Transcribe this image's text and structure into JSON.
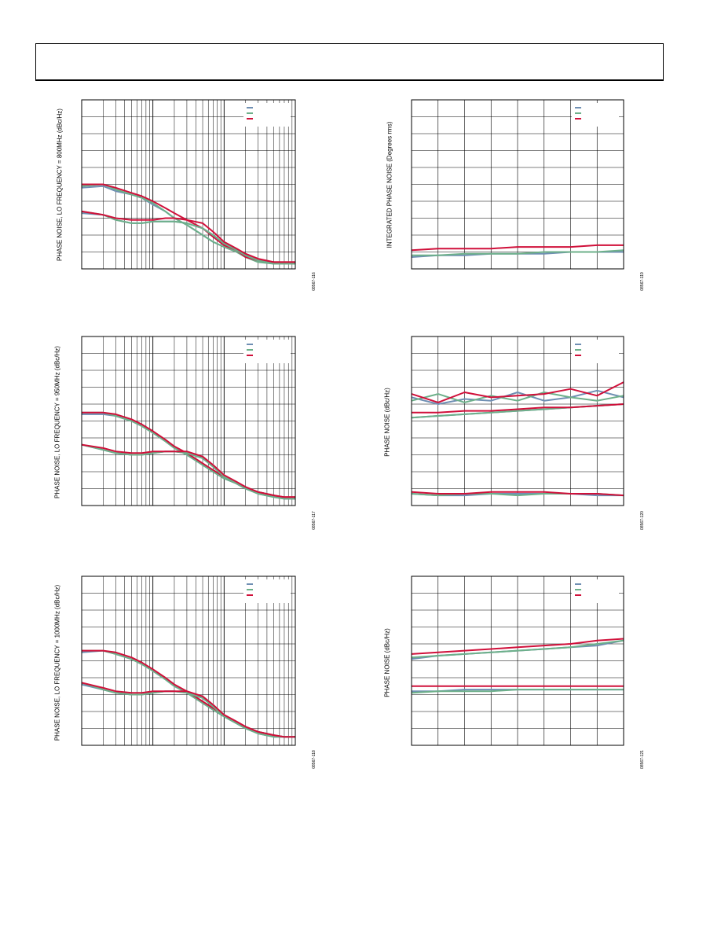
{
  "page": {
    "header_box": ""
  },
  "colors": {
    "blue": "#6f8fb3",
    "green": "#6db08a",
    "red": "#d0103a",
    "grid": "#000000"
  },
  "figures": [
    {
      "id": "fig-16",
      "ylabel": "PHASE NOISE, LO FREQUENCY = 800MHz (dBc/Hz)",
      "figure_id": "08567-116"
    },
    {
      "id": "fig-17",
      "ylabel": "PHASE NOISE, LO FREQUENCY = 950MHz (dBc/Hz)",
      "figure_id": "08567-117"
    },
    {
      "id": "fig-18",
      "ylabel": "PHASE NOISE, LO FREQUENCY = 1000MHz (dBc/Hz)",
      "figure_id": "08567-118"
    },
    {
      "id": "fig-19",
      "ylabel": "INTEGRATED PHASE NOISE (Degrees rms)",
      "figure_id": "08567-119"
    },
    {
      "id": "fig-20",
      "ylabel": "PHASE NOISE (dBc/Hz)",
      "figure_id": "08567-120"
    },
    {
      "id": "fig-21",
      "ylabel": "PHASE NOISE (dBc/Hz)",
      "figure_id": "08567-121"
    }
  ],
  "chart_data": [
    {
      "type": "line",
      "scale_x": "log",
      "grid": true,
      "legend": "top-right",
      "x": [
        1,
        2,
        3,
        5,
        7,
        10,
        15,
        20,
        30,
        50,
        70,
        100,
        150,
        200,
        300,
        500,
        700,
        1000
      ],
      "series": [
        {
          "color": "blue",
          "values": [
            0.52,
            0.51,
            0.54,
            0.56,
            0.58,
            0.62,
            0.66,
            0.7,
            0.74,
            0.8,
            0.84,
            0.87,
            0.9,
            0.93,
            0.95,
            0.97,
            0.97,
            0.97
          ]
        },
        {
          "color": "green",
          "values": [
            0.51,
            0.5,
            0.53,
            0.56,
            0.58,
            0.61,
            0.66,
            0.7,
            0.74,
            0.8,
            0.84,
            0.87,
            0.9,
            0.93,
            0.96,
            0.97,
            0.97,
            0.97
          ]
        },
        {
          "color": "red",
          "values": [
            0.5,
            0.5,
            0.52,
            0.55,
            0.57,
            0.6,
            0.64,
            0.67,
            0.71,
            0.76,
            0.81,
            0.86,
            0.89,
            0.93,
            0.95,
            0.96,
            0.96,
            0.96
          ]
        },
        {
          "color": "blue",
          "values": [
            0.67,
            0.68,
            0.71,
            0.73,
            0.73,
            0.72,
            0.72,
            0.72,
            0.73,
            0.76,
            0.8,
            0.85,
            0.89,
            0.92,
            0.95,
            0.97,
            0.97,
            0.97
          ]
        },
        {
          "color": "green",
          "values": [
            0.66,
            0.68,
            0.71,
            0.73,
            0.73,
            0.72,
            0.72,
            0.72,
            0.73,
            0.76,
            0.8,
            0.85,
            0.89,
            0.92,
            0.95,
            0.97,
            0.97,
            0.97
          ]
        },
        {
          "color": "red",
          "values": [
            0.66,
            0.68,
            0.7,
            0.71,
            0.71,
            0.71,
            0.7,
            0.7,
            0.71,
            0.73,
            0.78,
            0.84,
            0.88,
            0.91,
            0.94,
            0.96,
            0.96,
            0.96
          ]
        }
      ]
    },
    {
      "type": "line",
      "scale_x": "log",
      "grid": true,
      "legend": "top-right",
      "x": [
        1,
        2,
        3,
        5,
        7,
        10,
        15,
        20,
        30,
        50,
        70,
        100,
        150,
        200,
        300,
        500,
        700,
        1000
      ],
      "series": [
        {
          "color": "blue",
          "values": [
            0.46,
            0.46,
            0.47,
            0.5,
            0.53,
            0.57,
            0.62,
            0.66,
            0.7,
            0.76,
            0.8,
            0.84,
            0.87,
            0.9,
            0.92,
            0.94,
            0.96,
            0.96
          ]
        },
        {
          "color": "green",
          "values": [
            0.45,
            0.45,
            0.47,
            0.5,
            0.53,
            0.57,
            0.62,
            0.66,
            0.7,
            0.76,
            0.8,
            0.84,
            0.87,
            0.9,
            0.92,
            0.94,
            0.96,
            0.96
          ]
        },
        {
          "color": "red",
          "values": [
            0.45,
            0.45,
            0.46,
            0.49,
            0.52,
            0.56,
            0.61,
            0.65,
            0.69,
            0.75,
            0.79,
            0.83,
            0.87,
            0.9,
            0.92,
            0.94,
            0.95,
            0.95
          ]
        },
        {
          "color": "blue",
          "values": [
            0.64,
            0.67,
            0.69,
            0.7,
            0.7,
            0.69,
            0.68,
            0.68,
            0.69,
            0.72,
            0.77,
            0.83,
            0.87,
            0.9,
            0.93,
            0.95,
            0.96,
            0.96
          ]
        },
        {
          "color": "green",
          "values": [
            0.64,
            0.67,
            0.69,
            0.7,
            0.7,
            0.69,
            0.68,
            0.68,
            0.69,
            0.72,
            0.77,
            0.83,
            0.87,
            0.9,
            0.93,
            0.95,
            0.96,
            0.96
          ]
        },
        {
          "color": "red",
          "values": [
            0.64,
            0.66,
            0.68,
            0.69,
            0.69,
            0.68,
            0.68,
            0.68,
            0.68,
            0.71,
            0.76,
            0.82,
            0.86,
            0.89,
            0.92,
            0.94,
            0.95,
            0.95
          ]
        }
      ]
    },
    {
      "type": "line",
      "scale_x": "log",
      "grid": true,
      "legend": "top-right",
      "x": [
        1,
        2,
        3,
        5,
        7,
        10,
        15,
        20,
        30,
        50,
        70,
        100,
        150,
        200,
        300,
        500,
        700,
        1000
      ],
      "series": [
        {
          "color": "blue",
          "values": [
            0.45,
            0.44,
            0.46,
            0.49,
            0.52,
            0.56,
            0.61,
            0.65,
            0.69,
            0.75,
            0.79,
            0.83,
            0.87,
            0.9,
            0.92,
            0.94,
            0.95,
            0.95
          ]
        },
        {
          "color": "green",
          "values": [
            0.44,
            0.44,
            0.46,
            0.49,
            0.52,
            0.56,
            0.61,
            0.65,
            0.69,
            0.75,
            0.79,
            0.83,
            0.87,
            0.9,
            0.92,
            0.94,
            0.95,
            0.95
          ]
        },
        {
          "color": "red",
          "values": [
            0.44,
            0.44,
            0.45,
            0.48,
            0.51,
            0.55,
            0.6,
            0.64,
            0.68,
            0.74,
            0.78,
            0.82,
            0.86,
            0.89,
            0.92,
            0.94,
            0.95,
            0.95
          ]
        },
        {
          "color": "blue",
          "values": [
            0.64,
            0.67,
            0.69,
            0.7,
            0.7,
            0.69,
            0.68,
            0.68,
            0.69,
            0.72,
            0.77,
            0.83,
            0.87,
            0.9,
            0.93,
            0.95,
            0.95,
            0.95
          ]
        },
        {
          "color": "green",
          "values": [
            0.63,
            0.67,
            0.69,
            0.7,
            0.7,
            0.69,
            0.68,
            0.68,
            0.69,
            0.72,
            0.77,
            0.83,
            0.87,
            0.9,
            0.93,
            0.95,
            0.95,
            0.95
          ]
        },
        {
          "color": "red",
          "values": [
            0.63,
            0.66,
            0.68,
            0.69,
            0.69,
            0.68,
            0.68,
            0.68,
            0.68,
            0.71,
            0.76,
            0.82,
            0.86,
            0.89,
            0.92,
            0.94,
            0.95,
            0.95
          ]
        }
      ]
    },
    {
      "type": "line",
      "grid": true,
      "legend": "top-right",
      "x": [
        0,
        1,
        2,
        3,
        4,
        5,
        6,
        7,
        8
      ],
      "series": [
        {
          "color": "blue",
          "values": [
            0.93,
            0.92,
            0.92,
            0.91,
            0.91,
            0.91,
            0.9,
            0.9,
            0.9
          ]
        },
        {
          "color": "green",
          "values": [
            0.92,
            0.92,
            0.91,
            0.91,
            0.91,
            0.9,
            0.9,
            0.9,
            0.89
          ]
        },
        {
          "color": "red",
          "values": [
            0.89,
            0.88,
            0.88,
            0.88,
            0.87,
            0.87,
            0.87,
            0.86,
            0.86
          ]
        }
      ]
    },
    {
      "type": "line",
      "grid": true,
      "legend": "top-right",
      "x": [
        0,
        1,
        2,
        3,
        4,
        5,
        6,
        7,
        8
      ],
      "series": [
        {
          "color": "blue",
          "values": [
            0.36,
            0.4,
            0.37,
            0.38,
            0.33,
            0.38,
            0.36,
            0.32,
            0.36
          ]
        },
        {
          "color": "green",
          "values": [
            0.38,
            0.34,
            0.39,
            0.35,
            0.38,
            0.33,
            0.36,
            0.38,
            0.35
          ]
        },
        {
          "color": "red",
          "values": [
            0.34,
            0.39,
            0.33,
            0.36,
            0.35,
            0.34,
            0.31,
            0.35,
            0.27
          ]
        },
        {
          "color": "blue",
          "values": [
            0.48,
            0.47,
            0.46,
            0.45,
            0.44,
            0.43,
            0.42,
            0.41,
            0.4
          ]
        },
        {
          "color": "green",
          "values": [
            0.48,
            0.47,
            0.46,
            0.45,
            0.44,
            0.43,
            0.42,
            0.41,
            0.4
          ]
        },
        {
          "color": "red",
          "values": [
            0.45,
            0.45,
            0.44,
            0.44,
            0.43,
            0.42,
            0.42,
            0.41,
            0.4
          ]
        },
        {
          "color": "blue",
          "values": [
            0.93,
            0.94,
            0.94,
            0.93,
            0.93,
            0.93,
            0.93,
            0.94,
            0.94
          ]
        },
        {
          "color": "green",
          "values": [
            0.93,
            0.94,
            0.93,
            0.93,
            0.94,
            0.93,
            0.93,
            0.93,
            0.94
          ]
        },
        {
          "color": "red",
          "values": [
            0.92,
            0.93,
            0.93,
            0.92,
            0.92,
            0.92,
            0.93,
            0.93,
            0.94
          ]
        }
      ]
    },
    {
      "type": "line",
      "grid": true,
      "legend": "top-right",
      "x": [
        0,
        1,
        2,
        3,
        4,
        5,
        6,
        7,
        8
      ],
      "series": [
        {
          "color": "blue",
          "values": [
            0.49,
            0.47,
            0.46,
            0.45,
            0.44,
            0.43,
            0.42,
            0.41,
            0.38
          ]
        },
        {
          "color": "green",
          "values": [
            0.48,
            0.47,
            0.46,
            0.45,
            0.44,
            0.43,
            0.42,
            0.4,
            0.38
          ]
        },
        {
          "color": "red",
          "values": [
            0.46,
            0.45,
            0.44,
            0.43,
            0.42,
            0.41,
            0.4,
            0.38,
            0.37
          ]
        },
        {
          "color": "blue",
          "values": [
            0.68,
            0.68,
            0.67,
            0.67,
            0.67,
            0.67,
            0.67,
            0.67,
            0.67
          ]
        },
        {
          "color": "green",
          "values": [
            0.69,
            0.68,
            0.68,
            0.68,
            0.67,
            0.67,
            0.67,
            0.67,
            0.67
          ]
        },
        {
          "color": "red",
          "values": [
            0.65,
            0.65,
            0.65,
            0.65,
            0.65,
            0.65,
            0.65,
            0.65,
            0.65
          ]
        }
      ]
    }
  ]
}
